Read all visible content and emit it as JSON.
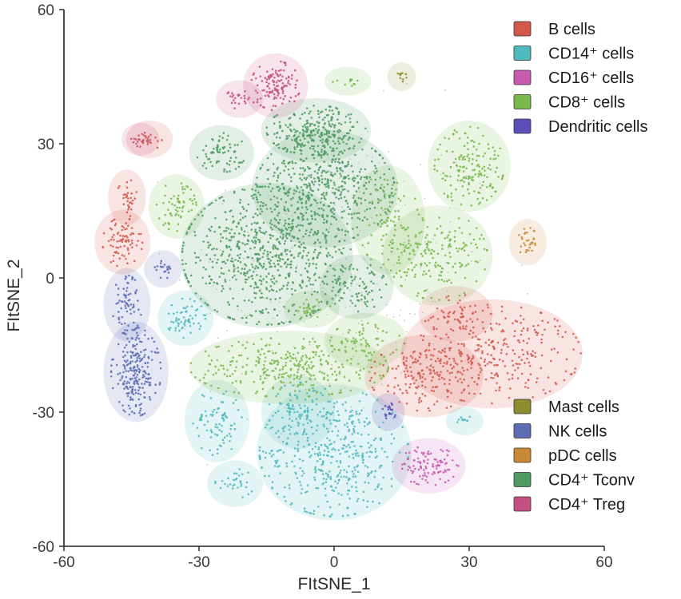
{
  "chart_data": {
    "type": "scatter",
    "title": "",
    "xlabel": "FItSNE_1",
    "ylabel": "FItSNE_2",
    "xlim": [
      -60,
      60
    ],
    "ylim": [
      -60,
      60
    ],
    "xticks": [
      -60,
      -30,
      0,
      30,
      60
    ],
    "yticks": [
      -60,
      -30,
      0,
      30,
      60
    ],
    "grid": false,
    "legend_position": "right",
    "series": [
      {
        "name": "B cells",
        "color": "#d2584a",
        "clusters": [
          {
            "cx": 35,
            "cy": -17,
            "rx": 18,
            "ry": 10,
            "n": 320
          },
          {
            "cx": 20,
            "cy": -22,
            "rx": 11,
            "ry": 7,
            "n": 140
          },
          {
            "cx": 27,
            "cy": -8,
            "rx": 6,
            "ry": 4,
            "n": 40
          },
          {
            "cx": -47,
            "cy": 8,
            "rx": 4,
            "ry": 5,
            "n": 80
          },
          {
            "cx": -46,
            "cy": 18,
            "rx": 2,
            "ry": 4,
            "n": 30
          },
          {
            "cx": -41,
            "cy": 31,
            "rx": 3,
            "ry": 2,
            "n": 20
          }
        ]
      },
      {
        "name": "CD14+ cells",
        "color": "#4fb9bd",
        "clusters": [
          {
            "cx": 0,
            "cy": -39,
            "rx": 15,
            "ry": 13,
            "n": 420
          },
          {
            "cx": -8,
            "cy": -30,
            "rx": 6,
            "ry": 6,
            "n": 80
          },
          {
            "cx": -26,
            "cy": -32,
            "rx": 5,
            "ry": 7,
            "n": 80
          },
          {
            "cx": -22,
            "cy": -46,
            "rx": 4,
            "ry": 3,
            "n": 30
          },
          {
            "cx": -33,
            "cy": -9,
            "rx": 4,
            "ry": 4,
            "n": 60
          },
          {
            "cx": 29,
            "cy": -32,
            "rx": 2,
            "ry": 1,
            "n": 10
          }
        ]
      },
      {
        "name": "CD16+ cells",
        "color": "#c65bb0",
        "clusters": [
          {
            "cx": 21,
            "cy": -42,
            "rx": 6,
            "ry": 4,
            "n": 100
          }
        ]
      },
      {
        "name": "CD8+ cells",
        "color": "#79b94b",
        "clusters": [
          {
            "cx": 30,
            "cy": 25,
            "rx": 7,
            "ry": 8,
            "n": 160
          },
          {
            "cx": 23,
            "cy": 5,
            "rx": 10,
            "ry": 9,
            "n": 180
          },
          {
            "cx": 12,
            "cy": 13,
            "rx": 6,
            "ry": 10,
            "n": 90
          },
          {
            "cx": -10,
            "cy": -20,
            "rx": 20,
            "ry": 6,
            "n": 300
          },
          {
            "cx": 7,
            "cy": -14,
            "rx": 7,
            "ry": 4,
            "n": 60
          },
          {
            "cx": -35,
            "cy": 16,
            "rx": 4,
            "ry": 5,
            "n": 60
          },
          {
            "cx": -5,
            "cy": -7,
            "rx": 4,
            "ry": 2,
            "n": 30
          },
          {
            "cx": 3,
            "cy": 44,
            "rx": 3,
            "ry": 1,
            "n": 12
          }
        ]
      },
      {
        "name": "Dendritic cells",
        "color": "#5b4eb8",
        "clusters": [
          {
            "cx": 12,
            "cy": -30,
            "rx": 1.5,
            "ry": 2,
            "n": 20
          }
        ]
      },
      {
        "name": "Mast cells",
        "color": "#8b8d2e",
        "clusters": [
          {
            "cx": 15,
            "cy": 45,
            "rx": 1,
            "ry": 1,
            "n": 10
          }
        ]
      },
      {
        "name": "NK cells",
        "color": "#5d6cb5",
        "clusters": [
          {
            "cx": -44,
            "cy": -21,
            "rx": 5,
            "ry": 9,
            "n": 230
          },
          {
            "cx": -46,
            "cy": -6,
            "rx": 3,
            "ry": 6,
            "n": 70
          },
          {
            "cx": -38,
            "cy": 2,
            "rx": 2,
            "ry": 2,
            "n": 20
          }
        ]
      },
      {
        "name": "pDC cells",
        "color": "#c98a37",
        "clusters": [
          {
            "cx": 43,
            "cy": 8,
            "rx": 2,
            "ry": 3,
            "n": 30
          }
        ]
      },
      {
        "name": "CD4+ Tconv",
        "color": "#4f9b63",
        "clusters": [
          {
            "cx": -15,
            "cy": 5,
            "rx": 17,
            "ry": 14,
            "n": 700
          },
          {
            "cx": -2,
            "cy": 20,
            "rx": 14,
            "ry": 11,
            "n": 500
          },
          {
            "cx": -4,
            "cy": 33,
            "rx": 10,
            "ry": 5,
            "n": 250
          },
          {
            "cx": -25,
            "cy": 28,
            "rx": 5,
            "ry": 4,
            "n": 70
          },
          {
            "cx": 5,
            "cy": -2,
            "rx": 6,
            "ry": 5,
            "n": 80
          }
        ]
      },
      {
        "name": "CD4+ Treg",
        "color": "#c44f83",
        "clusters": [
          {
            "cx": -13,
            "cy": 43,
            "rx": 5,
            "ry": 5,
            "n": 120
          },
          {
            "cx": -21,
            "cy": 40,
            "rx": 3,
            "ry": 2,
            "n": 25
          },
          {
            "cx": -43,
            "cy": 31,
            "rx": 2,
            "ry": 1.5,
            "n": 15
          }
        ]
      }
    ],
    "background_points_color": "#a9a9a9"
  },
  "legend": {
    "top": [
      {
        "label": "B cells",
        "color": "#d2584a"
      },
      {
        "label": "CD14⁺ cells",
        "color": "#4fb9bd"
      },
      {
        "label": "CD16⁺ cells",
        "color": "#c65bb0"
      },
      {
        "label": "CD8⁺ cells",
        "color": "#79b94b"
      },
      {
        "label": "Dendritic cells",
        "color": "#5b4eb8"
      }
    ],
    "bottom": [
      {
        "label": "Mast cells",
        "color": "#8b8d2e"
      },
      {
        "label": "NK cells",
        "color": "#5d6cb5"
      },
      {
        "label": "pDC cells",
        "color": "#c98a37"
      },
      {
        "label": "CD4⁺ Tconv",
        "color": "#4f9b63"
      },
      {
        "label": "CD4⁺ Treg",
        "color": "#c44f83"
      }
    ]
  }
}
